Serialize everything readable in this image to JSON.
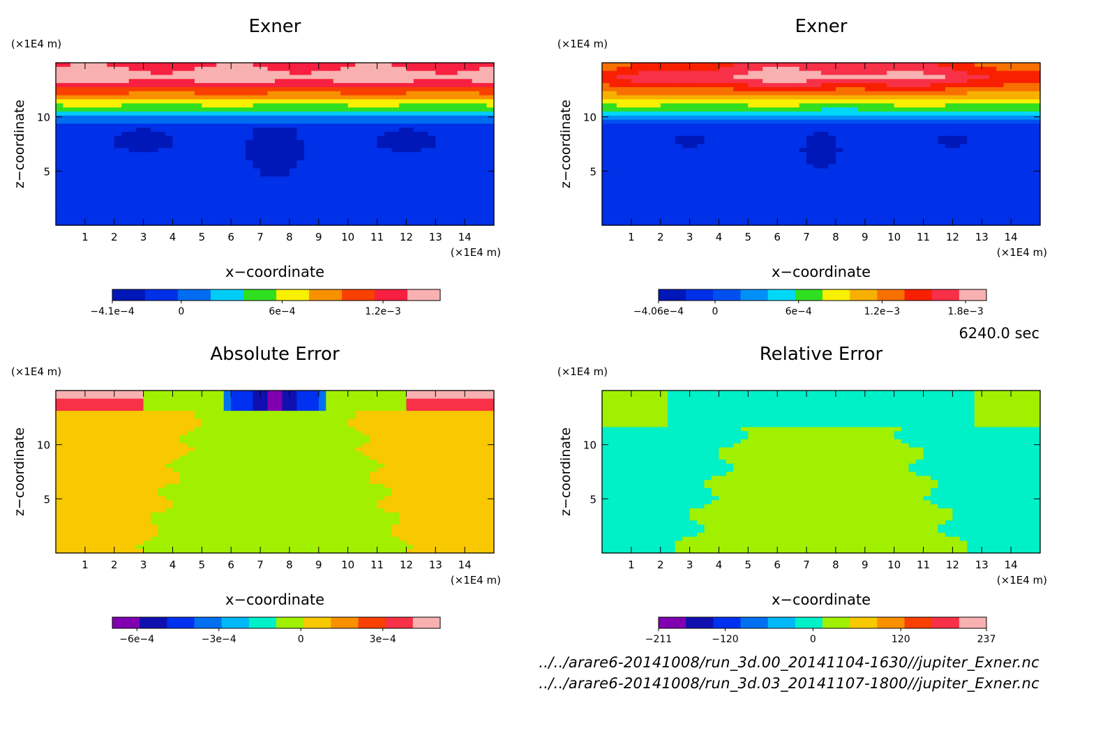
{
  "time_label": "6240.0 sec",
  "footer": {
    "line1": "../../arare6-20141008/run_3d.00_20141104-1630//jupiter_Exner.nc",
    "line2": "../../arare6-20141008/run_3d.03_20141107-1800//jupiter_Exner.nc"
  },
  "chart_data": [
    {
      "type": "heatmap",
      "title": "Exner",
      "xlabel": "x−coordinate",
      "ylabel": "z−coordinate",
      "x_unit": "(×1E4 m)",
      "z_unit": "(×1E4 m)",
      "xlim": [
        0,
        15
      ],
      "zlim": [
        0,
        15
      ],
      "x_ticks": [
        "1",
        "2",
        "3",
        "4",
        "5",
        "6",
        "7",
        "8",
        "9",
        "10",
        "11",
        "12",
        "13",
        "14"
      ],
      "z_ticks": [
        "5",
        "10"
      ],
      "colorbar": {
        "ticks": [
          {
            "v": -0.00041,
            "label": "−4.1e−4"
          },
          {
            "v": 0,
            "label": "0"
          },
          {
            "v": 0.0006,
            "label": "6e−4"
          },
          {
            "v": 0.0012,
            "label": "1.2e−3"
          }
        ],
        "range": [
          -0.00041,
          0.00154
        ],
        "colors": [
          "#0018b8",
          "#0030e8",
          "#006cf0",
          "#00ccf8",
          "#30e020",
          "#f8f000",
          "#f89000",
          "#f84000",
          "#f82040",
          "#f8b0b0"
        ]
      },
      "field_note": "stratified: low values below z=10, sharp increase to maximum near top (z~13.5)"
    },
    {
      "type": "heatmap",
      "title": "Exner",
      "xlabel": "x−coordinate",
      "ylabel": "z−coordinate",
      "x_unit": "(×1E4 m)",
      "z_unit": "(×1E4 m)",
      "xlim": [
        0,
        15
      ],
      "zlim": [
        0,
        15
      ],
      "x_ticks": [
        "1",
        "2",
        "3",
        "4",
        "5",
        "6",
        "7",
        "8",
        "9",
        "10",
        "11",
        "12",
        "13",
        "14"
      ],
      "z_ticks": [
        "5",
        "10"
      ],
      "colorbar": {
        "ticks": [
          {
            "v": -0.000406,
            "label": "−4.06e−4"
          },
          {
            "v": 0,
            "label": "0"
          },
          {
            "v": 0.0006,
            "label": "6e−4"
          },
          {
            "v": 0.0012,
            "label": "1.2e−3"
          },
          {
            "v": 0.0018,
            "label": "1.8e−3"
          }
        ],
        "range": [
          -0.000406,
          0.00195
        ],
        "colors": [
          "#0018b8",
          "#0030e8",
          "#0050f0",
          "#0090f8",
          "#00d8f8",
          "#30e020",
          "#f8f000",
          "#f8b000",
          "#f87000",
          "#f82000",
          "#f83048",
          "#f8b0b0"
        ]
      }
    },
    {
      "type": "heatmap",
      "title": "Absolute Error",
      "xlabel": "x−coordinate",
      "ylabel": "z−coordinate",
      "x_unit": "(×1E4 m)",
      "z_unit": "(×1E4 m)",
      "xlim": [
        0,
        15
      ],
      "zlim": [
        0,
        15
      ],
      "x_ticks": [
        "1",
        "2",
        "3",
        "4",
        "5",
        "6",
        "7",
        "8",
        "9",
        "10",
        "11",
        "12",
        "13",
        "14"
      ],
      "z_ticks": [
        "5",
        "10"
      ],
      "colorbar": {
        "ticks": [
          {
            "v": -0.0006,
            "label": "−6e−4"
          },
          {
            "v": -0.0003,
            "label": "−3e−4"
          },
          {
            "v": 0,
            "label": "0"
          },
          {
            "v": 0.0003,
            "label": "3e−4"
          }
        ],
        "range": [
          -0.00069,
          0.00051
        ],
        "colors": [
          "#8000b0",
          "#1010b0",
          "#0030f0",
          "#0070f0",
          "#00b8f8",
          "#00f0c8",
          "#a0f000",
          "#f8c800",
          "#f89000",
          "#f84000",
          "#f83048",
          "#f8b0b0"
        ]
      }
    },
    {
      "type": "heatmap",
      "title": "Relative Error",
      "xlabel": "x−coordinate",
      "ylabel": "z−coordinate",
      "x_unit": "(×1E4 m)",
      "z_unit": "(×1E4 m)",
      "xlim": [
        0,
        15
      ],
      "zlim": [
        0,
        15
      ],
      "x_ticks": [
        "1",
        "2",
        "3",
        "4",
        "5",
        "6",
        "7",
        "8",
        "9",
        "10",
        "11",
        "12",
        "13",
        "14"
      ],
      "z_ticks": [
        "5",
        "10"
      ],
      "colorbar": {
        "ticks": [
          {
            "v": -211,
            "label": "−211"
          },
          {
            "v": -120,
            "label": "−120"
          },
          {
            "v": 0,
            "label": "0"
          },
          {
            "v": 120,
            "label": "120"
          },
          {
            "v": 237,
            "label": "237"
          }
        ],
        "range": [
          -211,
          237
        ],
        "colors": [
          "#8000b0",
          "#1010b0",
          "#0030f0",
          "#0070f0",
          "#00b8f8",
          "#00f0c8",
          "#a0f000",
          "#f8c800",
          "#f89000",
          "#f84000",
          "#f83048",
          "#f8b0b0"
        ]
      }
    }
  ]
}
